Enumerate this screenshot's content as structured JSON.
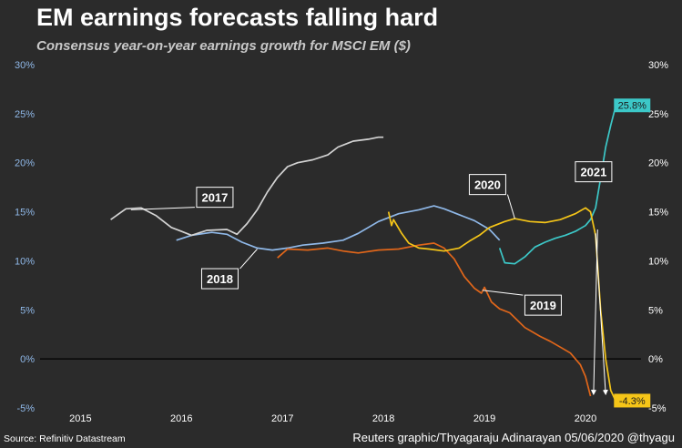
{
  "header": {
    "title": "EM earnings forecasts falling hard",
    "subtitle": "Consensus year-on-year earnings growth for MSCI EM ($)"
  },
  "footer": {
    "source": "Source: Refinitiv Datastream",
    "credit": "Reuters graphic/Thyagaraju Adinarayan 05/06/2020 @thyagu"
  },
  "chart_data": {
    "type": "line",
    "title": "EM earnings forecasts falling hard",
    "subtitle": "Consensus year-on-year earnings growth for MSCI EM ($)",
    "x_ticks": [
      "2015",
      "2016",
      "2017",
      "2018",
      "2019",
      "2020"
    ],
    "y_ticks": [
      "-5%",
      "0%",
      "5%",
      "10%",
      "15%",
      "20%",
      "25%",
      "30%"
    ],
    "xlim": [
      2014.6,
      2020.55
    ],
    "ylim": [
      -5,
      30
    ],
    "grid": false,
    "colors": {
      "2017": "#d3d3d3",
      "2018": "#8fb8e8",
      "2019": "#e0661a",
      "2020": "#f5c518",
      "2021": "#3cc8c8",
      "left_axis": "#8fb8e8",
      "right_axis": "#ffffff",
      "zero_line": "#000000"
    },
    "end_labels": [
      {
        "series": "2021",
        "text": "25.8%",
        "value": 25.8
      },
      {
        "series": "2020",
        "text": "-4.3%",
        "value": -4.3
      }
    ],
    "series": [
      {
        "name": "2017",
        "color": "#d3d3d3",
        "points": [
          [
            2015.3,
            14.2
          ],
          [
            2015.45,
            15.3
          ],
          [
            2015.6,
            15.4
          ],
          [
            2015.75,
            14.6
          ],
          [
            2015.9,
            13.4
          ],
          [
            2016.0,
            13.0
          ],
          [
            2016.1,
            12.6
          ],
          [
            2016.25,
            13.1
          ],
          [
            2016.45,
            13.2
          ],
          [
            2016.55,
            12.7
          ],
          [
            2016.65,
            13.8
          ],
          [
            2016.75,
            15.2
          ],
          [
            2016.85,
            17.0
          ],
          [
            2016.95,
            18.5
          ],
          [
            2017.05,
            19.6
          ],
          [
            2017.15,
            20.0
          ],
          [
            2017.3,
            20.3
          ],
          [
            2017.45,
            20.8
          ],
          [
            2017.55,
            21.6
          ],
          [
            2017.7,
            22.2
          ],
          [
            2017.85,
            22.4
          ],
          [
            2017.95,
            22.6
          ],
          [
            2018.0,
            22.6
          ]
        ]
      },
      {
        "name": "2018",
        "color": "#8fb8e8",
        "points": [
          [
            2015.95,
            12.1
          ],
          [
            2016.1,
            12.6
          ],
          [
            2016.3,
            12.9
          ],
          [
            2016.45,
            12.7
          ],
          [
            2016.6,
            11.9
          ],
          [
            2016.75,
            11.3
          ],
          [
            2016.9,
            11.1
          ],
          [
            2017.05,
            11.3
          ],
          [
            2017.2,
            11.6
          ],
          [
            2017.4,
            11.8
          ],
          [
            2017.6,
            12.1
          ],
          [
            2017.75,
            12.8
          ],
          [
            2017.95,
            14.0
          ],
          [
            2018.15,
            14.8
          ],
          [
            2018.35,
            15.2
          ],
          [
            2018.5,
            15.6
          ],
          [
            2018.6,
            15.3
          ],
          [
            2018.75,
            14.7
          ],
          [
            2018.9,
            14.1
          ],
          [
            2019.05,
            13.2
          ],
          [
            2019.15,
            12.1
          ]
        ]
      },
      {
        "name": "2019",
        "color": "#e0661a",
        "points": [
          [
            2016.95,
            10.3
          ],
          [
            2017.05,
            11.2
          ],
          [
            2017.25,
            11.1
          ],
          [
            2017.45,
            11.3
          ],
          [
            2017.6,
            11.0
          ],
          [
            2017.75,
            10.8
          ],
          [
            2017.95,
            11.1
          ],
          [
            2018.15,
            11.2
          ],
          [
            2018.35,
            11.6
          ],
          [
            2018.5,
            11.8
          ],
          [
            2018.6,
            11.3
          ],
          [
            2018.7,
            10.2
          ],
          [
            2018.8,
            8.4
          ],
          [
            2018.9,
            7.2
          ],
          [
            2018.97,
            6.7
          ],
          [
            2019.0,
            7.3
          ],
          [
            2019.07,
            5.8
          ],
          [
            2019.15,
            5.1
          ],
          [
            2019.25,
            4.7
          ],
          [
            2019.4,
            3.2
          ],
          [
            2019.55,
            2.3
          ],
          [
            2019.65,
            1.8
          ],
          [
            2019.75,
            1.2
          ],
          [
            2019.85,
            0.6
          ],
          [
            2019.95,
            -0.6
          ],
          [
            2020.0,
            -1.8
          ],
          [
            2020.05,
            -3.8
          ]
        ]
      },
      {
        "name": "2020",
        "color": "#f5c518",
        "points": [
          [
            2018.05,
            15.0
          ],
          [
            2018.08,
            13.6
          ],
          [
            2018.1,
            14.2
          ],
          [
            2018.18,
            12.8
          ],
          [
            2018.25,
            11.8
          ],
          [
            2018.35,
            11.3
          ],
          [
            2018.45,
            11.2
          ],
          [
            2018.6,
            11.0
          ],
          [
            2018.75,
            11.3
          ],
          [
            2018.85,
            12.0
          ],
          [
            2018.95,
            12.6
          ],
          [
            2019.05,
            13.4
          ],
          [
            2019.2,
            14.0
          ],
          [
            2019.3,
            14.3
          ],
          [
            2019.45,
            14.0
          ],
          [
            2019.6,
            13.9
          ],
          [
            2019.75,
            14.2
          ],
          [
            2019.9,
            14.8
          ],
          [
            2020.0,
            15.4
          ],
          [
            2020.05,
            15.0
          ],
          [
            2020.1,
            12.6
          ],
          [
            2020.15,
            5.0
          ],
          [
            2020.2,
            0.0
          ],
          [
            2020.25,
            -3.2
          ],
          [
            2020.3,
            -4.3
          ]
        ]
      },
      {
        "name": "2021",
        "color": "#3cc8c8",
        "points": [
          [
            2019.15,
            11.3
          ],
          [
            2019.2,
            9.8
          ],
          [
            2019.3,
            9.7
          ],
          [
            2019.4,
            10.4
          ],
          [
            2019.5,
            11.4
          ],
          [
            2019.6,
            11.9
          ],
          [
            2019.7,
            12.3
          ],
          [
            2019.8,
            12.6
          ],
          [
            2019.9,
            13.0
          ],
          [
            2020.0,
            13.6
          ],
          [
            2020.05,
            14.2
          ],
          [
            2020.1,
            15.4
          ],
          [
            2020.15,
            18.4
          ],
          [
            2020.2,
            21.6
          ],
          [
            2020.25,
            23.8
          ],
          [
            2020.3,
            25.8
          ]
        ]
      }
    ],
    "callouts": [
      {
        "text": "2017",
        "series": "2017"
      },
      {
        "text": "2018",
        "series": "2018"
      },
      {
        "text": "2019",
        "series": "2019"
      },
      {
        "text": "2020",
        "series": "2020"
      },
      {
        "text": "2021",
        "series": "2021"
      }
    ]
  }
}
